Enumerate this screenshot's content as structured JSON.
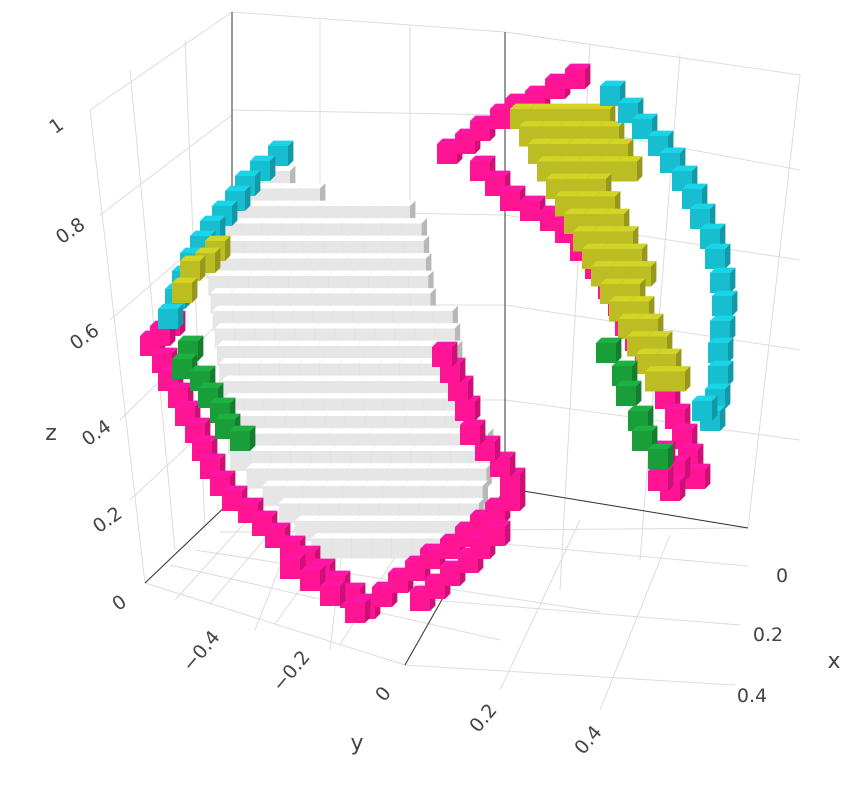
{
  "chart_data": {
    "type": "voxel-3d",
    "axes": {
      "x": {
        "label": "x",
        "ticks": [
          "0",
          "0.2",
          "0.4"
        ]
      },
      "y": {
        "label": "y",
        "ticks": [
          "−0.4",
          "−0.2",
          "0",
          "0.2",
          "0.4"
        ]
      },
      "z": {
        "label": "z",
        "ticks": [
          "0",
          "0.2",
          "0.4",
          "0.6",
          "0.8",
          "1"
        ]
      }
    },
    "colors": {
      "shell": "#ff1493",
      "interior": "#e6e6e6",
      "cyan": "#17becf",
      "olive": "#bcbd22",
      "green": "#1a9e3a"
    },
    "groups": [
      {
        "color": "interior",
        "cells": "flat interior panel of the left piece"
      },
      {
        "color": "shell",
        "cells": "pink rim around both pieces"
      },
      {
        "color": "cyan",
        "cells": "outer upper edge of both pieces"
      },
      {
        "color": "olive",
        "cells": "upper band of both pieces"
      },
      {
        "color": "green",
        "cells": "lower inner band of both pieces"
      }
    ]
  }
}
